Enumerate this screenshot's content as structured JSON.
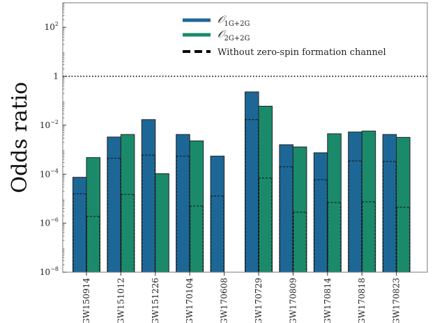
{
  "chart_data": {
    "type": "bar",
    "title": "",
    "xlabel": "",
    "ylabel": "Odds ratio",
    "yscale": "log",
    "ylim": [
      1e-08,
      1000
    ],
    "yticks": [
      {
        "value": 1e-08,
        "base": "10",
        "exp": "−8"
      },
      {
        "value": 1e-06,
        "base": "10",
        "exp": "−6"
      },
      {
        "value": 0.0001,
        "base": "10",
        "exp": "−4"
      },
      {
        "value": 0.01,
        "base": "10",
        "exp": "−2"
      },
      {
        "value": 1,
        "base": "1",
        "exp": ""
      },
      {
        "value": 100,
        "base": "10",
        "exp": "2"
      }
    ],
    "reference_line": {
      "value": 1,
      "style": "dotted"
    },
    "categories": [
      "GW150914",
      "GW151012",
      "GW151226",
      "GW170104",
      "GW170608",
      "GW170729",
      "GW170809",
      "GW170814",
      "GW170818",
      "GW170823"
    ],
    "series": [
      {
        "name": "O1G+2G",
        "label_main": "𝒪",
        "label_sub": "1G+2G",
        "color": "#1d6797",
        "values": [
          7.5e-05,
          0.0033,
          0.017,
          0.0042,
          0.00055,
          0.23,
          0.0016,
          0.00075,
          0.0053,
          0.0042
        ],
        "zero_spin_values": [
          1.6e-05,
          0.00045,
          0.0006,
          0.00055,
          1.3e-05,
          0.017,
          0.0002,
          6e-05,
          0.00035,
          0.00033
        ]
      },
      {
        "name": "O2G+2G",
        "label_main": "𝒪",
        "label_sub": "2G+2G",
        "color": "#1b8a6b",
        "values": [
          0.00048,
          0.0042,
          0.000105,
          0.0023,
          null,
          0.06,
          0.0013,
          0.0045,
          0.0058,
          0.0032
        ],
        "zero_spin_values": [
          1.9e-06,
          1.5e-05,
          null,
          5e-06,
          null,
          7e-05,
          2.8e-06,
          7e-06,
          7.5e-06,
          4.5e-06
        ]
      }
    ],
    "legend": {
      "placement": "top-center",
      "dashed_label": "Without zero-spin formation channel"
    },
    "grid": false
  }
}
